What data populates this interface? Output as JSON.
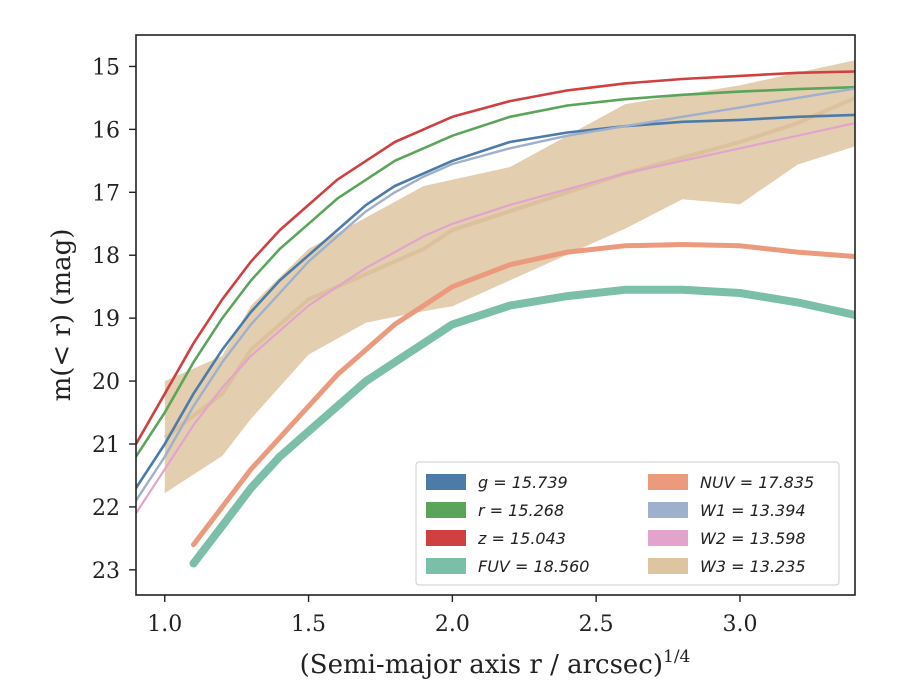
{
  "chart_data": {
    "type": "line",
    "xlabel": "(Semi-major axis r / arcsec)",
    "xlabel_sup": "1/4",
    "ylabel": "m(< r) (mag)",
    "xlim": [
      0.9,
      3.4
    ],
    "ylim": [
      23.4,
      14.5
    ],
    "y_inverted": true,
    "x_ticks": [
      1.0,
      1.5,
      2.0,
      2.5,
      3.0
    ],
    "x_tick_labels": [
      "1.0",
      "1.5",
      "2.0",
      "2.5",
      "3.0"
    ],
    "y_ticks": [
      15,
      16,
      17,
      18,
      19,
      20,
      21,
      22,
      23
    ],
    "y_tick_labels": [
      "15",
      "16",
      "17",
      "18",
      "19",
      "20",
      "21",
      "22",
      "23"
    ],
    "grid": false,
    "legend_position": "bottom-right",
    "series": [
      {
        "name": "g = 15.739",
        "color": "#4c7ba8",
        "x": [
          0.9,
          1.0,
          1.1,
          1.2,
          1.3,
          1.4,
          1.5,
          1.6,
          1.7,
          1.8,
          1.9,
          2.0,
          2.2,
          2.4,
          2.6,
          2.8,
          3.0,
          3.2,
          3.4
        ],
        "y": [
          21.7,
          21.0,
          20.2,
          19.5,
          18.9,
          18.4,
          18.0,
          17.6,
          17.2,
          16.9,
          16.7,
          16.5,
          16.2,
          16.05,
          15.95,
          15.88,
          15.85,
          15.8,
          15.77
        ]
      },
      {
        "name": "r = 15.268",
        "color": "#5aa55a",
        "x": [
          0.9,
          1.0,
          1.1,
          1.2,
          1.3,
          1.4,
          1.5,
          1.6,
          1.7,
          1.8,
          1.9,
          2.0,
          2.2,
          2.4,
          2.6,
          2.8,
          3.0,
          3.2,
          3.4
        ],
        "y": [
          21.2,
          20.5,
          19.7,
          19.0,
          18.4,
          17.9,
          17.5,
          17.1,
          16.8,
          16.5,
          16.3,
          16.1,
          15.8,
          15.62,
          15.52,
          15.45,
          15.4,
          15.36,
          15.33
        ]
      },
      {
        "name": "z = 15.043",
        "color": "#d04040",
        "x": [
          0.9,
          1.0,
          1.1,
          1.2,
          1.3,
          1.4,
          1.5,
          1.6,
          1.7,
          1.8,
          1.9,
          2.0,
          2.2,
          2.4,
          2.6,
          2.8,
          3.0,
          3.2,
          3.4
        ],
        "y": [
          21.0,
          20.2,
          19.4,
          18.7,
          18.1,
          17.6,
          17.2,
          16.8,
          16.5,
          16.2,
          16.0,
          15.8,
          15.55,
          15.38,
          15.27,
          15.2,
          15.15,
          15.1,
          15.08
        ]
      },
      {
        "name": "FUV = 18.560",
        "color": "#7bbfa8",
        "x": [
          1.1,
          1.2,
          1.3,
          1.4,
          1.5,
          1.6,
          1.7,
          1.8,
          1.9,
          2.0,
          2.2,
          2.4,
          2.6,
          2.8,
          3.0,
          3.2,
          3.4
        ],
        "y": [
          22.9,
          22.3,
          21.7,
          21.2,
          20.8,
          20.4,
          20.0,
          19.7,
          19.4,
          19.1,
          18.8,
          18.65,
          18.55,
          18.55,
          18.6,
          18.75,
          18.95
        ]
      },
      {
        "name": "NUV = 17.835",
        "color": "#eb9a7e",
        "x": [
          1.1,
          1.2,
          1.3,
          1.4,
          1.5,
          1.6,
          1.7,
          1.8,
          1.9,
          2.0,
          2.2,
          2.4,
          2.6,
          2.8,
          3.0,
          3.2,
          3.4
        ],
        "y": [
          22.6,
          22.0,
          21.4,
          20.9,
          20.4,
          19.9,
          19.5,
          19.1,
          18.8,
          18.5,
          18.15,
          17.95,
          17.85,
          17.83,
          17.85,
          17.95,
          18.02
        ]
      },
      {
        "name": "W1 = 13.394",
        "color": "#9fb0cc",
        "x": [
          0.9,
          1.0,
          1.1,
          1.2,
          1.3,
          1.4,
          1.5,
          1.6,
          1.7,
          1.8,
          1.9,
          2.0,
          2.2,
          2.4,
          2.6,
          2.8,
          3.0,
          3.2,
          3.4
        ],
        "y": [
          21.9,
          21.2,
          20.4,
          19.7,
          19.1,
          18.6,
          18.1,
          17.7,
          17.3,
          17.0,
          16.75,
          16.55,
          16.3,
          16.1,
          15.95,
          15.8,
          15.65,
          15.5,
          15.35
        ]
      },
      {
        "name": "W2 = 13.598",
        "color": "#e3a4cc",
        "x": [
          0.9,
          1.0,
          1.1,
          1.2,
          1.3,
          1.4,
          1.5,
          1.6,
          1.7,
          1.8,
          1.9,
          2.0,
          2.2,
          2.4,
          2.6,
          2.8,
          3.0,
          3.2,
          3.4
        ],
        "y": [
          22.1,
          21.4,
          20.7,
          20.1,
          19.6,
          19.2,
          18.8,
          18.5,
          18.2,
          17.95,
          17.7,
          17.5,
          17.2,
          16.95,
          16.7,
          16.5,
          16.3,
          16.1,
          15.9
        ]
      },
      {
        "name": "W3 = 13.235",
        "color": "#dec5a2",
        "x": [
          1.0,
          1.2,
          1.3,
          1.5,
          1.7,
          1.9,
          2.0,
          2.2,
          2.4,
          2.6,
          2.8,
          3.0,
          3.2,
          3.4
        ],
        "y": [
          20.9,
          20.2,
          19.5,
          18.7,
          18.3,
          17.9,
          17.6,
          17.3,
          17.0,
          16.7,
          16.45,
          16.2,
          15.9,
          15.5
        ]
      }
    ]
  }
}
